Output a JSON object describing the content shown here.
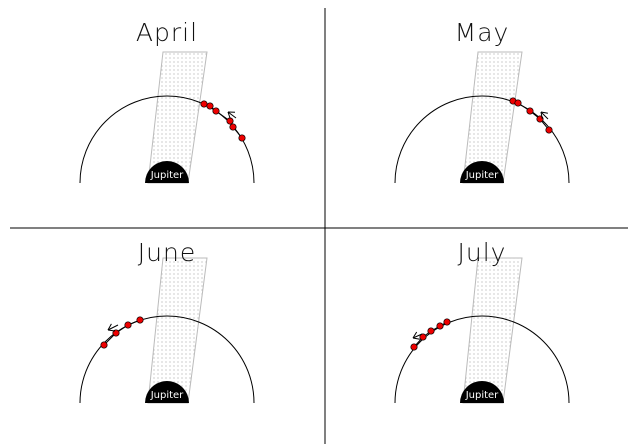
{
  "panels": [
    {
      "title": "April",
      "label": "Jupiter"
    },
    {
      "title": "May",
      "label": "Jupiter"
    },
    {
      "title": "June",
      "label": "Jupiter"
    },
    {
      "title": "July",
      "label": "Jupiter"
    }
  ]
}
